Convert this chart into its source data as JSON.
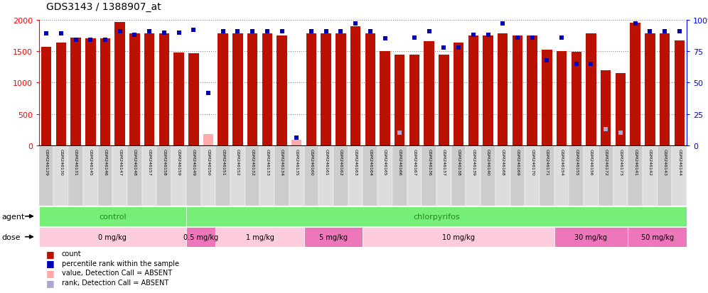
{
  "title": "GDS3143 / 1388907_at",
  "samples": [
    "GSM246129",
    "GSM246130",
    "GSM246131",
    "GSM246145",
    "GSM246146",
    "GSM246147",
    "GSM246148",
    "GSM246157",
    "GSM246158",
    "GSM246159",
    "GSM246149",
    "GSM246150",
    "GSM246151",
    "GSM246152",
    "GSM246132",
    "GSM246133",
    "GSM246134",
    "GSM246135",
    "GSM246160",
    "GSM246161",
    "GSM246162",
    "GSM246163",
    "GSM246164",
    "GSM246165",
    "GSM246166",
    "GSM246167",
    "GSM246136",
    "GSM246137",
    "GSM246138",
    "GSM246139",
    "GSM246140",
    "GSM246168",
    "GSM246169",
    "GSM246170",
    "GSM246171",
    "GSM246154",
    "GSM246155",
    "GSM246156",
    "GSM246172",
    "GSM246173",
    "GSM246141",
    "GSM246142",
    "GSM246143",
    "GSM246144"
  ],
  "counts": [
    1570,
    1640,
    1720,
    1700,
    1700,
    1970,
    1780,
    1780,
    1780,
    1480,
    1470,
    180,
    1780,
    1780,
    1780,
    1780,
    1750,
    90,
    1780,
    1780,
    1780,
    1900,
    1780,
    1500,
    1440,
    1440,
    1660,
    1440,
    1640,
    1750,
    1750,
    1780,
    1750,
    1750,
    1530,
    1500,
    1490,
    1780,
    1200,
    1150,
    1950,
    1780,
    1780,
    1670
  ],
  "ranks": [
    89,
    89,
    84,
    84,
    84,
    91,
    88,
    91,
    90,
    90,
    92,
    42,
    91,
    91,
    91,
    91,
    91,
    6,
    91,
    91,
    91,
    97,
    91,
    85,
    10,
    86,
    91,
    78,
    78,
    88,
    88,
    97,
    86,
    86,
    68,
    86,
    65,
    65,
    13,
    10,
    97,
    91,
    91,
    91
  ],
  "absent_count_idx": [
    11,
    17
  ],
  "absent_rank_idx": [
    24,
    38,
    39
  ],
  "agent_groups": [
    {
      "label": "control",
      "start": 0,
      "end": 10
    },
    {
      "label": "chlorpyrifos",
      "start": 10,
      "end": 44
    }
  ],
  "dose_groups": [
    {
      "label": "0 mg/kg",
      "start": 0,
      "end": 10,
      "color": "#FFCCDD"
    },
    {
      "label": "0.5 mg/kg",
      "start": 10,
      "end": 12,
      "color": "#EE77BB"
    },
    {
      "label": "1 mg/kg",
      "start": 12,
      "end": 18,
      "color": "#FFCCDD"
    },
    {
      "label": "5 mg/kg",
      "start": 18,
      "end": 22,
      "color": "#EE77BB"
    },
    {
      "label": "10 mg/kg",
      "start": 22,
      "end": 35,
      "color": "#FFCCDD"
    },
    {
      "label": "30 mg/kg",
      "start": 35,
      "end": 40,
      "color": "#EE77BB"
    },
    {
      "label": "50 mg/kg",
      "start": 40,
      "end": 44,
      "color": "#EE77BB"
    }
  ],
  "ylim_left": [
    0,
    2000
  ],
  "ylim_right": [
    0,
    100
  ],
  "bar_color": "#BB1100",
  "rank_color": "#0000BB",
  "absent_bar_color": "#FFAAAA",
  "absent_rank_color": "#AAAACC",
  "agent_color": "#77EE77",
  "agent_text_color": "#228822",
  "grid_color": "#888888",
  "plot_bg": "#FFFFFF",
  "label_bg_even": "#CCCCCC",
  "label_bg_odd": "#DDDDDD"
}
